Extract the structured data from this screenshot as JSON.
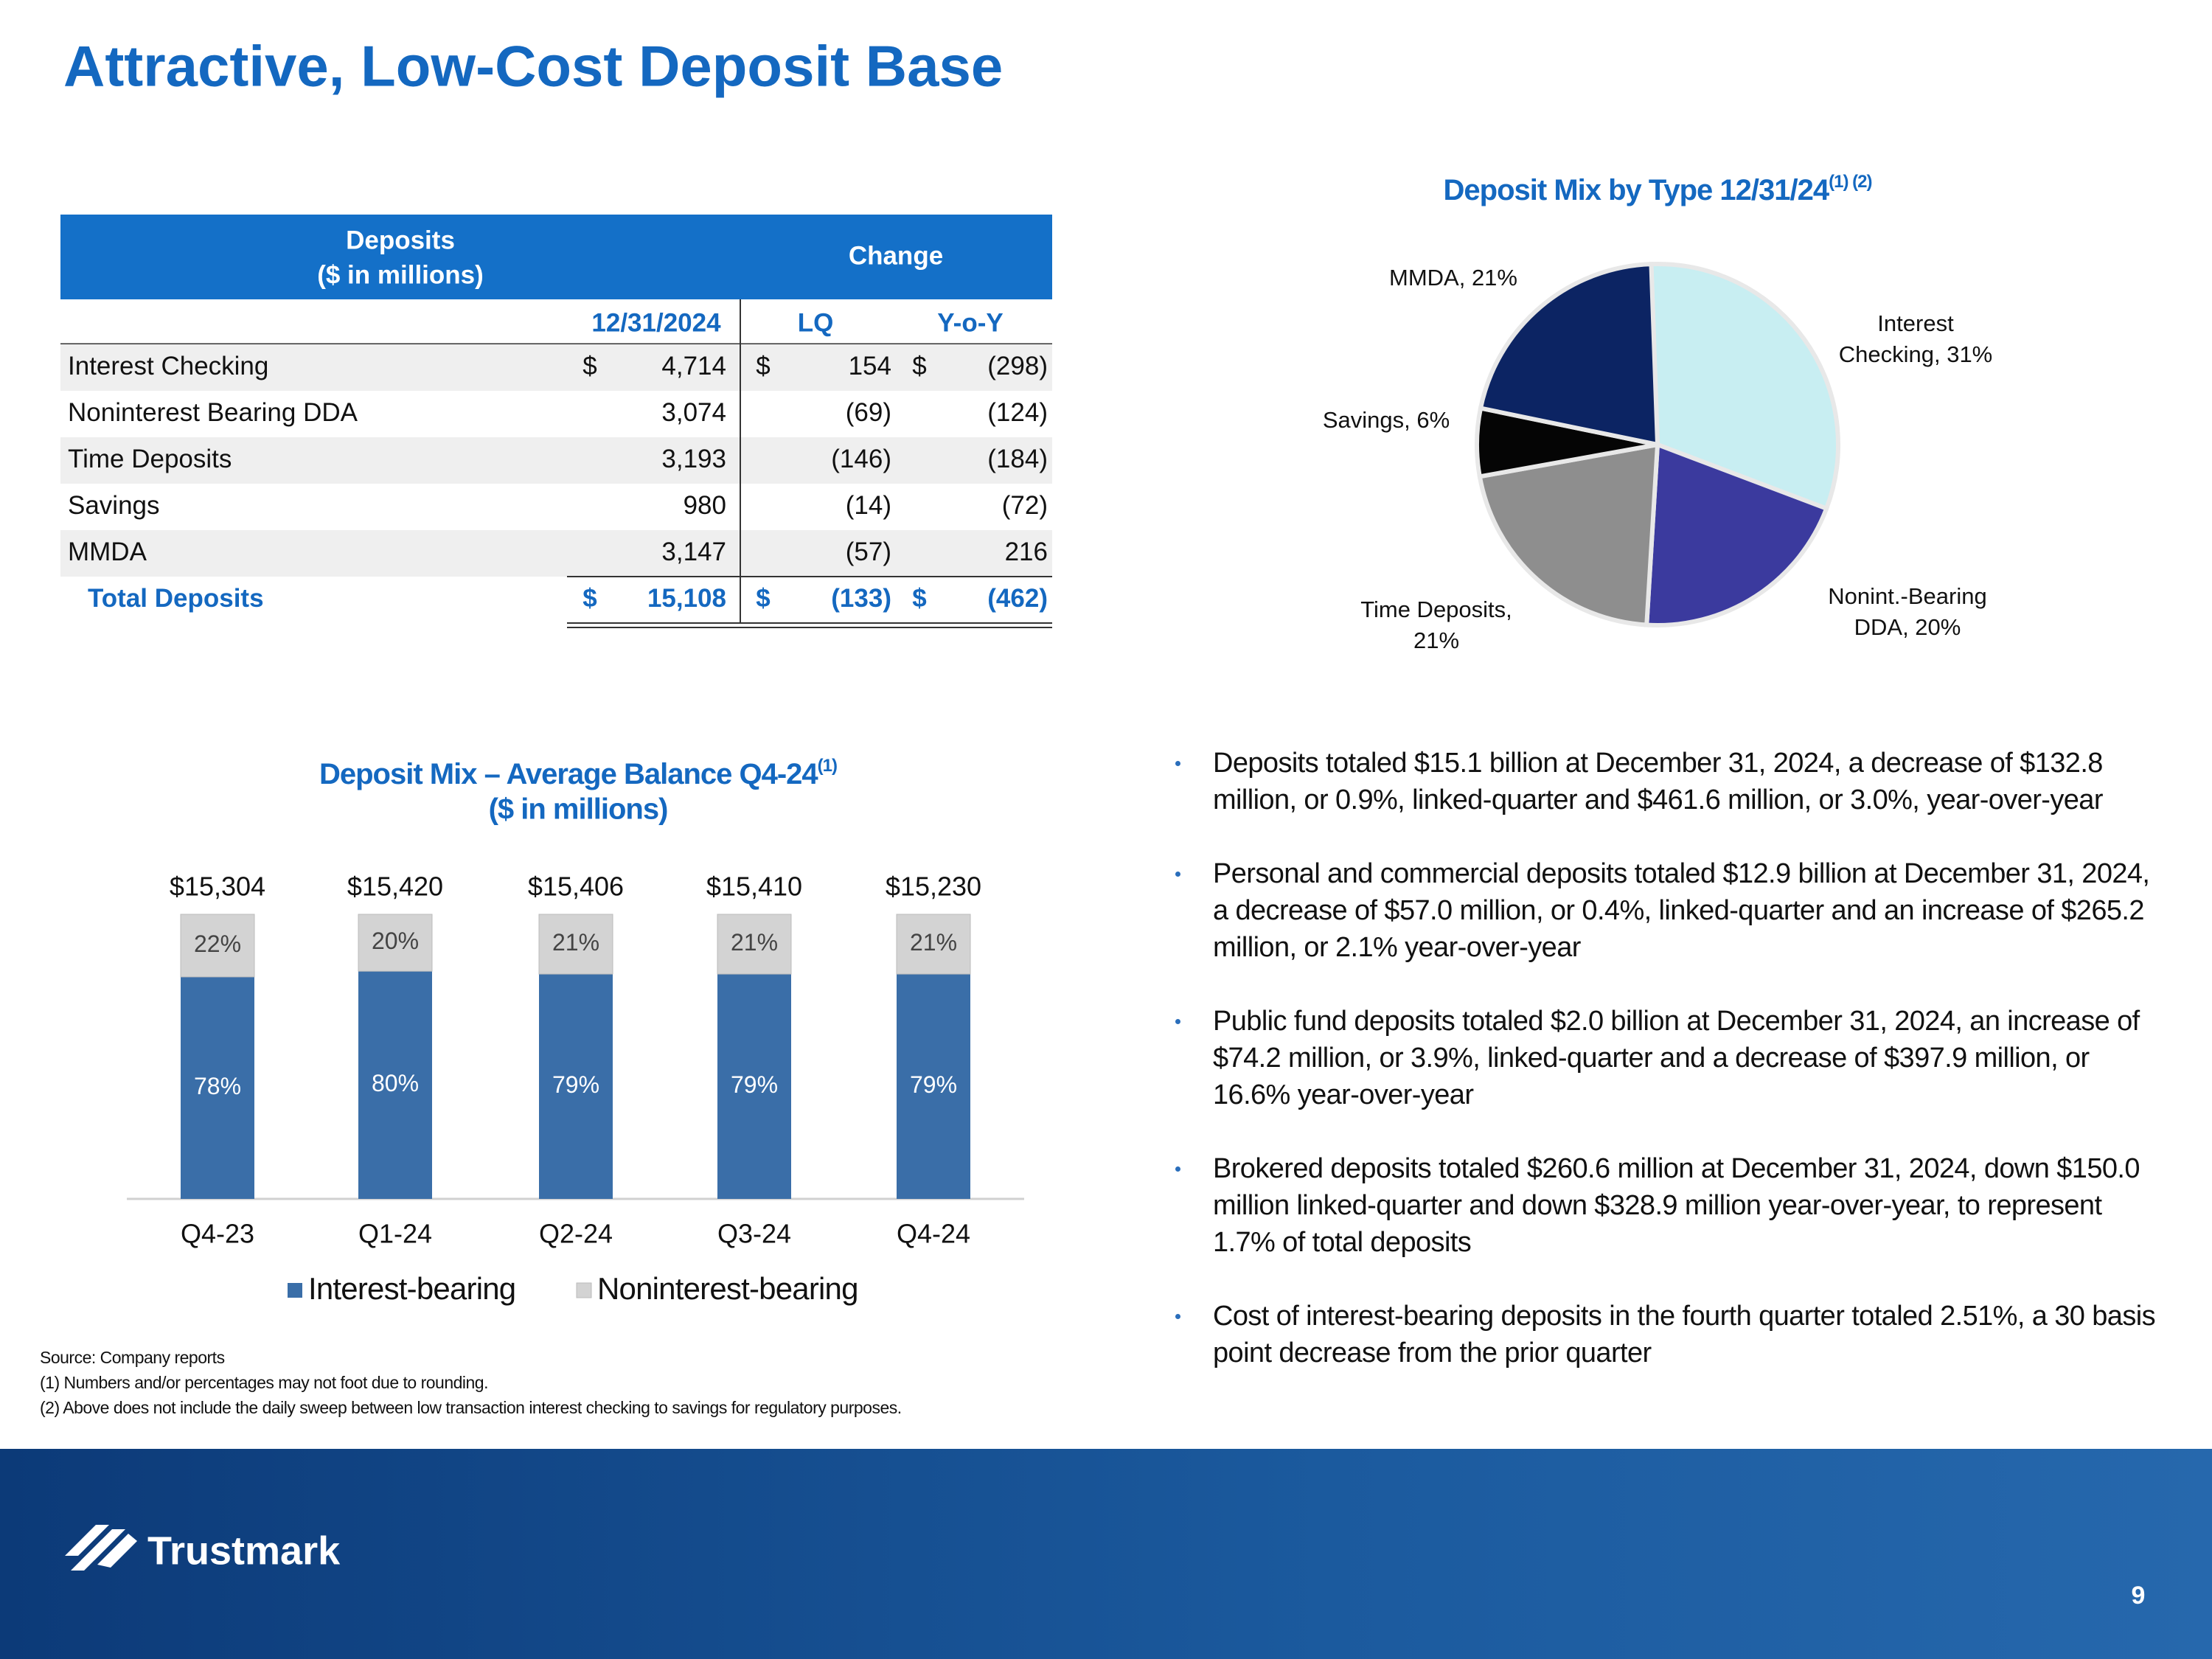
{
  "title": "Attractive, Low-Cost Deposit Base",
  "table": {
    "header": {
      "deposits": [
        "Deposits",
        "($ in millions)"
      ],
      "change": "Change"
    },
    "columns": [
      "12/31/2024",
      "LQ",
      "Y-o-Y"
    ],
    "rows": [
      {
        "label": "Interest Checking",
        "currency": "$",
        "values": [
          "4,714",
          "154",
          "(298)"
        ]
      },
      {
        "label": "Noninterest Bearing DDA",
        "values": [
          "3,074",
          "(69)",
          "(124)"
        ]
      },
      {
        "label": "Time Deposits",
        "values": [
          "3,193",
          "(146)",
          "(184)"
        ]
      },
      {
        "label": "Savings",
        "values": [
          "980",
          "(14)",
          "(72)"
        ]
      },
      {
        "label": "MMDA",
        "values": [
          "3,147",
          "(57)",
          "216"
        ]
      },
      {
        "label": "Total Deposits",
        "currency": "$",
        "values": [
          "15,108",
          "(133)",
          "(462)"
        ]
      }
    ]
  },
  "chart_data": [
    {
      "type": "pie",
      "title": "Deposit Mix by Type 12/31/24",
      "title_note": "(1) (2)",
      "values": [
        31,
        20,
        21,
        6,
        21
      ],
      "value_labels": [
        "Interest Checking, 31%",
        "Nonint.-Bearing DDA, 20%",
        "Time Deposits, 21%",
        "Savings, 6%",
        "MMDA, 21%"
      ],
      "colors": [
        "#c8eef2",
        "#3b3a9e",
        "#8e8e8e",
        "#050505",
        "#0c2463"
      ]
    },
    {
      "type": "bar",
      "stacked": true,
      "title": "Deposit Mix – Average Balance Q4-24",
      "title_note": "(1)",
      "subtitle": "($ in millions)",
      "categories": [
        "Q4-23",
        "Q1-24",
        "Q2-24",
        "Q3-24",
        "Q4-24"
      ],
      "series": [
        {
          "name": "Interest-bearing",
          "color": "#3a6ea8",
          "values": [
            78,
            80,
            79,
            79,
            79
          ],
          "value_labels": [
            "78%",
            "80%",
            "79%",
            "79%",
            "79%"
          ]
        },
        {
          "name": "Noninterest-bearing",
          "color": "#d3d3d3",
          "values": [
            22,
            20,
            21,
            21,
            21
          ],
          "value_labels": [
            "22%",
            "20%",
            "21%",
            "21%",
            "21%"
          ]
        }
      ],
      "annotations": [
        "$15,304",
        "$15,420",
        "$15,406",
        "$15,410",
        "$15,230"
      ],
      "ylim": [
        0,
        100
      ],
      "legend": "bottom"
    }
  ],
  "bullets": [
    "Deposits totaled $15.1 billion at December 31, 2024, a decrease of $132.8 million, or 0.9%, linked-quarter and $461.6 million, or 3.0%, year-over-year",
    "Personal and commercial deposits totaled $12.9 billion at December 31, 2024, a decrease of $57.0 million, or 0.4%, linked-quarter and an increase of $265.2 million, or 2.1% year-over-year",
    "Public fund deposits totaled $2.0 billion at December 31, 2024, an increase of $74.2 million, or 3.9%, linked-quarter and a decrease of $397.9 million, or 16.6% year-over-year",
    "Brokered deposits totaled $260.6 million at December 31, 2024, down $150.0 million linked-quarter and down $328.9 million year-over-year, to represent 1.7% of total deposits",
    "Cost of interest-bearing deposits in the fourth quarter totaled 2.51%, a 30 basis point decrease from the prior quarter"
  ],
  "footnotes": [
    "Source: Company reports",
    "(1) Numbers and/or percentages may not foot due to rounding.",
    "(2) Above does not include the daily sweep between low transaction interest checking to savings for regulatory purposes."
  ],
  "footer": {
    "logo": "Trustmark",
    "page_number": "9"
  }
}
